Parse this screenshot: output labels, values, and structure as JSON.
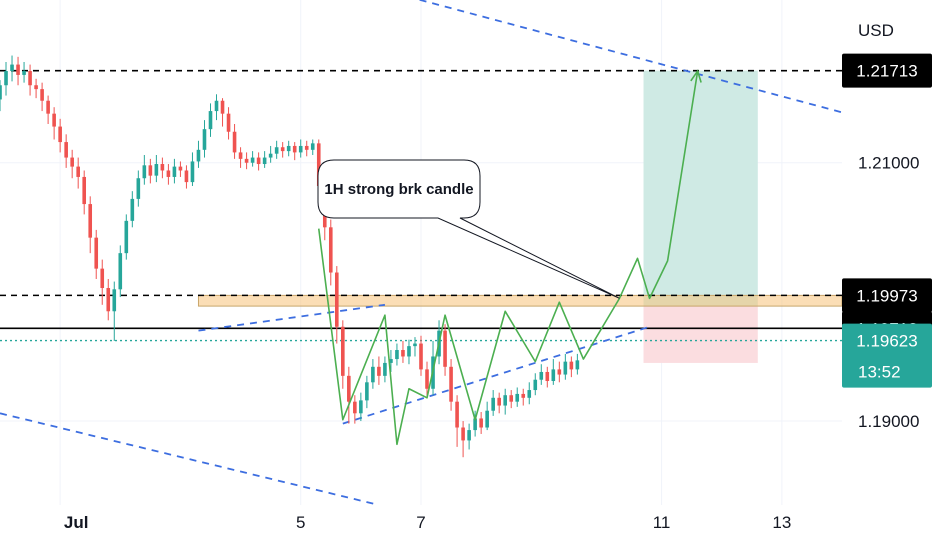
{
  "chart_data": {
    "type": "candlestick",
    "currency_label": "USD",
    "x_axis": {
      "tick_labels": [
        "Jul",
        "5",
        "7",
        "11",
        "13"
      ],
      "tick_days": [
        1,
        5,
        7,
        11,
        13
      ],
      "range_days": [
        0.0,
        14.0
      ]
    },
    "y_axis": {
      "tick_labels": [
        "1.21000",
        "1.19000"
      ],
      "tick_values": [
        1.21,
        1.19
      ],
      "range": [
        1.1835,
        1.2226
      ]
    },
    "price_badges": [
      {
        "name": "target",
        "value": "1.21713",
        "y": 1.21713,
        "bg": "#000000",
        "fg": "#ffffff"
      },
      {
        "name": "zone-top",
        "value": "1.19973",
        "y": 1.19973,
        "bg": "#000000",
        "fg": "#ffffff"
      },
      {
        "name": "zone-bottom",
        "value": "1.19718",
        "y": 1.19718,
        "bg": "#000000",
        "fg": "#ffffff"
      },
      {
        "name": "last-price",
        "value": "1.19623",
        "y": 1.19623,
        "bg": "#26a69a",
        "fg": "#ffffff",
        "countdown": "13:52"
      }
    ],
    "horizontal_lines": [
      {
        "y": 1.21713,
        "style": "dashed",
        "color": "#000000",
        "x_start_day": 0.0
      },
      {
        "y": 1.19973,
        "style": "dashed",
        "color": "#000000",
        "x_start_day": 0.0
      },
      {
        "y": 1.19718,
        "style": "solid",
        "color": "#000000",
        "x_start_day": 0.0
      },
      {
        "y": 1.19623,
        "style": "dotted",
        "color": "#26a69a",
        "x_start_day": 0.0
      }
    ],
    "zone": {
      "y_top": 1.19973,
      "y_bottom": 1.1989,
      "x_start_day": 3.3,
      "color": "#f7c27a"
    },
    "position": {
      "x_start_day": 10.7,
      "x_end_day": 12.6,
      "entry": 1.1989,
      "target": 1.21713,
      "stop": 1.1945,
      "profit_color": "#cfeae4",
      "loss_color": "#fbdde0"
    },
    "trendlines": [
      {
        "points": [
          [
            2.8,
            1.2278
          ],
          [
            14.0,
            1.2139
          ]
        ],
        "color": "#3d6ee0",
        "style": "dashed"
      },
      {
        "points": [
          [
            0.0,
            1.1906
          ],
          [
            6.3,
            1.1835
          ]
        ],
        "color": "#3d6ee0",
        "style": "dashed"
      },
      {
        "points": [
          [
            5.7,
            1.1898
          ],
          [
            10.8,
            1.1973
          ]
        ],
        "color": "#3d6ee0",
        "style": "dashed"
      },
      {
        "points": [
          [
            3.3,
            1.197
          ],
          [
            6.4,
            1.199
          ]
        ],
        "color": "#3d6ee0",
        "style": "dashed"
      }
    ],
    "zigzag": {
      "color": "#4caf50",
      "points": [
        [
          5.3,
          1.2049
        ],
        [
          5.7,
          1.1901
        ],
        [
          6.4,
          1.1982
        ],
        [
          6.6,
          1.1882
        ],
        [
          6.8,
          1.1925
        ],
        [
          7.1,
          1.1918
        ],
        [
          7.4,
          1.1982
        ],
        [
          7.9,
          1.1901
        ],
        [
          8.4,
          1.1985
        ],
        [
          8.9,
          1.1946
        ],
        [
          9.3,
          1.1992
        ],
        [
          9.7,
          1.1948
        ],
        [
          10.3,
          1.1995
        ],
        [
          10.6,
          1.2026
        ],
        [
          10.8,
          1.1995
        ],
        [
          11.1,
          1.2024
        ],
        [
          11.6,
          1.2171
        ]
      ]
    },
    "callout": {
      "text": "1H strong brk candle",
      "anchor": [
        10.3,
        1.1995
      ]
    },
    "candles": [
      [
        0.0,
        1.2149,
        1.216,
        1.2164,
        1.214
      ],
      [
        0.1,
        1.216,
        1.2171,
        1.2178,
        1.2152
      ],
      [
        0.2,
        1.2171,
        1.2176,
        1.2183,
        1.2163
      ],
      [
        0.3,
        1.2176,
        1.2168,
        1.2182,
        1.216
      ],
      [
        0.4,
        1.2168,
        1.2171,
        1.2178,
        1.2162
      ],
      [
        0.5,
        1.2171,
        1.216,
        1.2176,
        1.2152
      ],
      [
        0.6,
        1.216,
        1.2157,
        1.2165,
        1.215
      ],
      [
        0.7,
        1.2157,
        1.2148,
        1.2162,
        1.214
      ],
      [
        0.8,
        1.2148,
        1.2138,
        1.2152,
        1.213
      ],
      [
        0.9,
        1.2138,
        1.2128,
        1.2143,
        1.2118
      ],
      [
        1.0,
        1.2128,
        1.2116,
        1.2134,
        1.2108
      ],
      [
        1.1,
        1.2116,
        1.2104,
        1.2122,
        1.2096
      ],
      [
        1.2,
        1.2104,
        1.2097,
        1.211,
        1.2088
      ],
      [
        1.3,
        1.2097,
        1.2089,
        1.2104,
        1.208
      ],
      [
        1.4,
        1.2089,
        1.2068,
        1.2094,
        1.206
      ],
      [
        1.5,
        1.2068,
        1.2042,
        1.2074,
        1.203
      ],
      [
        1.6,
        1.2042,
        1.2018,
        1.2048,
        1.201
      ],
      [
        1.7,
        1.2018,
        1.2003,
        1.2025,
        1.199
      ],
      [
        1.8,
        1.2003,
        1.1985,
        1.201,
        1.1978
      ],
      [
        1.9,
        1.1985,
        1.2002,
        1.2008,
        1.1962
      ],
      [
        2.0,
        1.2002,
        1.203,
        1.2036,
        1.1996
      ],
      [
        2.1,
        1.203,
        1.2055,
        1.206,
        1.2025
      ],
      [
        2.2,
        1.2055,
        1.2072,
        1.2078,
        1.205
      ],
      [
        2.3,
        1.2072,
        1.2088,
        1.2094,
        1.2066
      ],
      [
        2.4,
        1.2088,
        1.2098,
        1.2106,
        1.2083
      ],
      [
        2.5,
        1.2098,
        1.209,
        1.2103,
        1.2084
      ],
      [
        2.6,
        1.209,
        1.2099,
        1.2106,
        1.2085
      ],
      [
        2.7,
        1.2099,
        1.2094,
        1.2104,
        1.2088
      ],
      [
        2.8,
        1.2094,
        1.2089,
        1.2099,
        1.2083
      ],
      [
        2.9,
        1.2089,
        1.2097,
        1.2103,
        1.2084
      ],
      [
        3.0,
        1.2097,
        1.2094,
        1.2101,
        1.2089
      ],
      [
        3.1,
        1.2094,
        1.2085,
        1.2098,
        1.208
      ],
      [
        3.2,
        1.2085,
        1.2101,
        1.2108,
        1.2082
      ],
      [
        3.3,
        1.2101,
        1.211,
        1.2117,
        1.2096
      ],
      [
        3.4,
        1.211,
        1.2126,
        1.2133,
        1.2104
      ],
      [
        3.5,
        1.2126,
        1.214,
        1.2146,
        1.212
      ],
      [
        3.6,
        1.214,
        1.2148,
        1.2153,
        1.2133
      ],
      [
        3.7,
        1.2148,
        1.2138,
        1.215,
        1.2128
      ],
      [
        3.8,
        1.2138,
        1.2124,
        1.2143,
        1.2118
      ],
      [
        3.9,
        1.2124,
        1.2108,
        1.213,
        1.2103
      ],
      [
        4.0,
        1.2108,
        1.2103,
        1.2112,
        1.2096
      ],
      [
        4.1,
        1.2103,
        1.21,
        1.2108,
        1.2095
      ],
      [
        4.2,
        1.21,
        1.2104,
        1.2109,
        1.2097
      ],
      [
        4.3,
        1.2104,
        1.2099,
        1.2108,
        1.2094
      ],
      [
        4.4,
        1.2099,
        1.2104,
        1.2109,
        1.2096
      ],
      [
        4.5,
        1.2104,
        1.2107,
        1.2113,
        1.21
      ],
      [
        4.6,
        1.2107,
        1.2112,
        1.2117,
        1.2103
      ],
      [
        4.7,
        1.2112,
        1.2109,
        1.2116,
        1.2104
      ],
      [
        4.8,
        1.2109,
        1.2113,
        1.2117,
        1.2105
      ],
      [
        4.9,
        1.2113,
        1.2108,
        1.2116,
        1.2102
      ],
      [
        5.0,
        1.2108,
        1.2113,
        1.2118,
        1.2104
      ],
      [
        5.1,
        1.2113,
        1.211,
        1.2117,
        1.2105
      ],
      [
        5.2,
        1.211,
        1.2115,
        1.2118,
        1.2106
      ],
      [
        5.3,
        1.2115,
        1.2082,
        1.2118,
        1.2076
      ],
      [
        5.4,
        1.2082,
        1.205,
        1.2088,
        1.204
      ],
      [
        5.5,
        1.205,
        1.2015,
        1.2056,
        1.2005
      ],
      [
        5.6,
        1.2015,
        1.1973,
        1.202,
        1.196
      ],
      [
        5.7,
        1.1973,
        1.1935,
        1.1978,
        1.1925
      ],
      [
        5.8,
        1.1935,
        1.1915,
        1.1942,
        1.1898
      ],
      [
        5.9,
        1.1915,
        1.1906,
        1.192,
        1.1898
      ],
      [
        6.0,
        1.1906,
        1.1916,
        1.1922,
        1.19
      ],
      [
        6.1,
        1.1916,
        1.193,
        1.1935,
        1.191
      ],
      [
        6.2,
        1.193,
        1.1942,
        1.1948,
        1.1925
      ],
      [
        6.3,
        1.1942,
        1.1935,
        1.195,
        1.1928
      ],
      [
        6.4,
        1.1935,
        1.1945,
        1.195,
        1.193
      ],
      [
        6.5,
        1.1945,
        1.1948,
        1.1955,
        1.1938
      ],
      [
        6.6,
        1.1948,
        1.1955,
        1.196,
        1.1943
      ],
      [
        6.7,
        1.1955,
        1.195,
        1.1962,
        1.1945
      ],
      [
        6.8,
        1.195,
        1.1958,
        1.1963,
        1.1944
      ],
      [
        6.9,
        1.1958,
        1.196,
        1.1965,
        1.195
      ],
      [
        7.0,
        1.196,
        1.194,
        1.1966,
        1.1935
      ],
      [
        7.1,
        1.194,
        1.1925,
        1.1946,
        1.1918
      ],
      [
        7.2,
        1.1925,
        1.195,
        1.1962,
        1.192
      ],
      [
        7.3,
        1.195,
        1.197,
        1.1978,
        1.1944
      ],
      [
        7.4,
        1.197,
        1.1942,
        1.1975,
        1.1935
      ],
      [
        7.5,
        1.1942,
        1.1915,
        1.1948,
        1.1908
      ],
      [
        7.6,
        1.1915,
        1.1895,
        1.192,
        1.188
      ],
      [
        7.7,
        1.1895,
        1.1885,
        1.19,
        1.1872
      ],
      [
        7.8,
        1.1885,
        1.1893,
        1.1898,
        1.1878
      ],
      [
        7.9,
        1.1893,
        1.1902,
        1.1908,
        1.1888
      ],
      [
        8.0,
        1.1902,
        1.1895,
        1.1907,
        1.189
      ],
      [
        8.1,
        1.1895,
        1.1908,
        1.1915,
        1.1893
      ],
      [
        8.2,
        1.1908,
        1.1918,
        1.1924,
        1.1904
      ],
      [
        8.3,
        1.1918,
        1.1912,
        1.1922,
        1.1906
      ],
      [
        8.4,
        1.1912,
        1.192,
        1.1925,
        1.1905
      ],
      [
        8.5,
        1.192,
        1.1915,
        1.1924,
        1.191
      ],
      [
        8.6,
        1.1915,
        1.1921,
        1.1926,
        1.1911
      ],
      [
        8.7,
        1.1921,
        1.1918,
        1.1925,
        1.1912
      ],
      [
        8.8,
        1.1918,
        1.1924,
        1.193,
        1.1913
      ],
      [
        8.9,
        1.1924,
        1.1932,
        1.1937,
        1.192
      ],
      [
        9.0,
        1.1932,
        1.1938,
        1.1944,
        1.1928
      ],
      [
        9.1,
        1.1938,
        1.1931,
        1.1942,
        1.1926
      ],
      [
        9.2,
        1.1931,
        1.194,
        1.1948,
        1.1928
      ],
      [
        9.3,
        1.194,
        1.1936,
        1.1946,
        1.193
      ],
      [
        9.4,
        1.1936,
        1.1946,
        1.1952,
        1.1932
      ],
      [
        9.5,
        1.1946,
        1.194,
        1.195,
        1.1934
      ],
      [
        9.6,
        1.194,
        1.1947,
        1.1952,
        1.1936
      ]
    ]
  }
}
